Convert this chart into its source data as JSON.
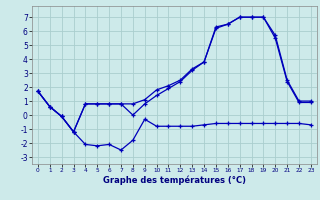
{
  "title": "Graphe des températures (°C)",
  "background_color": "#cdeaea",
  "grid_color": "#aacece",
  "line_color": "#0000bb",
  "xlim": [
    -0.5,
    23.5
  ],
  "ylim": [
    -3.5,
    7.8
  ],
  "yticks": [
    -3,
    -2,
    -1,
    0,
    1,
    2,
    3,
    4,
    5,
    6,
    7
  ],
  "xticks": [
    0,
    1,
    2,
    3,
    4,
    5,
    6,
    7,
    8,
    9,
    10,
    11,
    12,
    13,
    14,
    15,
    16,
    17,
    18,
    19,
    20,
    21,
    22,
    23
  ],
  "line1_x": [
    0,
    1,
    2,
    3,
    4,
    5,
    6,
    7,
    8,
    9,
    10,
    11,
    12,
    13,
    14,
    15,
    16,
    17,
    18,
    19,
    20,
    21,
    22,
    23
  ],
  "line1_y": [
    1.7,
    0.6,
    -0.1,
    -1.2,
    -2.1,
    -2.2,
    -2.1,
    -2.5,
    -1.8,
    -0.3,
    -0.8,
    -0.8,
    -0.8,
    -0.8,
    -0.7,
    -0.6,
    -0.6,
    -0.6,
    -0.6,
    -0.6,
    -0.6,
    -0.6,
    -0.6,
    -0.7
  ],
  "line2_x": [
    0,
    1,
    2,
    3,
    4,
    5,
    6,
    7,
    8,
    9,
    10,
    11,
    12,
    13,
    14,
    15,
    16,
    17,
    18,
    19,
    20,
    21,
    22,
    23
  ],
  "line2_y": [
    1.7,
    0.6,
    -0.1,
    -1.2,
    0.8,
    0.8,
    0.8,
    0.8,
    0.8,
    1.1,
    1.8,
    2.1,
    2.5,
    3.3,
    3.8,
    6.3,
    6.5,
    7.0,
    7.0,
    7.0,
    5.7,
    2.5,
    1.0,
    1.0
  ],
  "line3_x": [
    0,
    1,
    2,
    3,
    4,
    5,
    6,
    7,
    8,
    9,
    10,
    11,
    12,
    13,
    14,
    15,
    16,
    17,
    18,
    19,
    20,
    21,
    22,
    23
  ],
  "line3_y": [
    1.7,
    0.6,
    -0.1,
    -1.2,
    0.8,
    0.8,
    0.8,
    0.8,
    0.0,
    0.8,
    1.4,
    1.9,
    2.4,
    3.2,
    3.8,
    6.2,
    6.5,
    7.0,
    7.0,
    7.0,
    5.5,
    2.4,
    0.9,
    0.9
  ]
}
